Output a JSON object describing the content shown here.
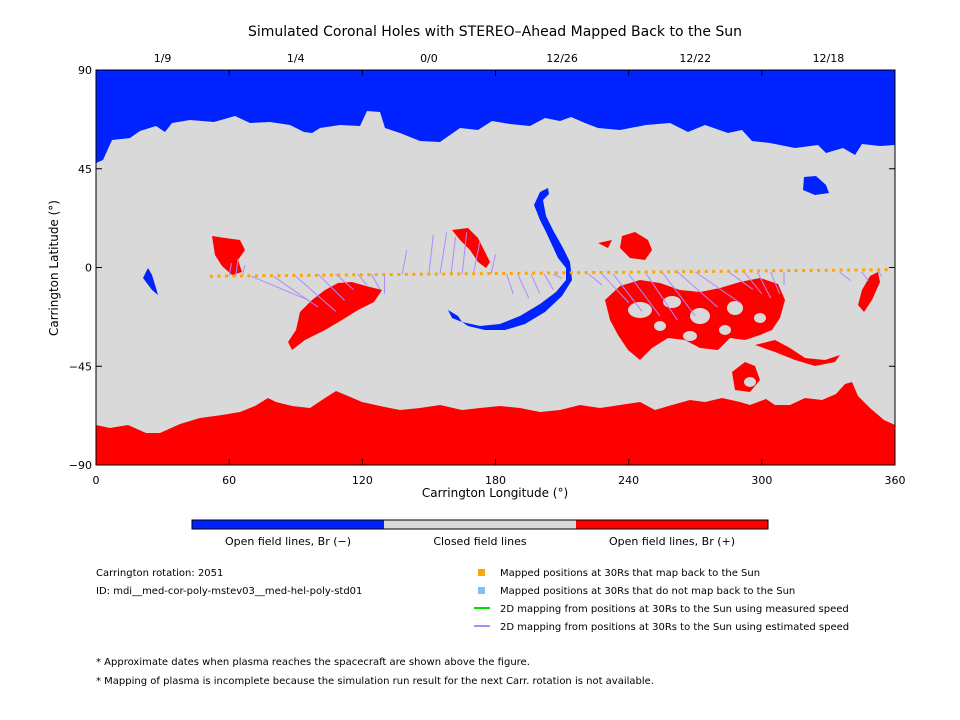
{
  "chart_data": {
    "type": "map",
    "title": "Simulated Coronal Holes with STEREO–Ahead Mapped Back to the Sun",
    "xlabel": "Carrington Longitude (°)",
    "ylabel": "Carrington Latitude (°)",
    "xlim": [
      0,
      360
    ],
    "ylim": [
      -90,
      90
    ],
    "x_ticks": [
      "0",
      "60",
      "120",
      "180",
      "240",
      "300",
      "360"
    ],
    "y_ticks": [
      "90",
      "45",
      "0",
      "−45",
      "−90"
    ],
    "top_date_ticks": [
      {
        "lon": 30,
        "label": "1/9"
      },
      {
        "lon": 90,
        "label": "1/4"
      },
      {
        "lon": 150,
        "label": "0/0"
      },
      {
        "lon": 210,
        "label": "12/26"
      },
      {
        "lon": 270,
        "label": "12/22"
      },
      {
        "lon": 330,
        "label": "12/18"
      }
    ],
    "colors": {
      "open_negative": "#0022ff",
      "closed": "#d9d9d9",
      "open_positive": "#ff0000",
      "mapped": "#ffa500",
      "unmapped": "#7fbfff",
      "measured_speed": "#00dd00",
      "estimated_speed": "#b088ff"
    },
    "mapped_track": {
      "lon_start": 52,
      "lon_end": 356,
      "lat_start": -4,
      "lat_end": -1
    },
    "estimated_speed_links": [
      [
        60,
        -4,
        61,
        2
      ],
      [
        63,
        -4,
        64,
        4
      ],
      [
        66,
        -4,
        67,
        1
      ],
      [
        70,
        -4,
        96,
        -15
      ],
      [
        80,
        -4,
        100,
        -18
      ],
      [
        90,
        -4,
        108,
        -20
      ],
      [
        100,
        -3,
        112,
        -15
      ],
      [
        108,
        -3,
        116,
        -10
      ],
      [
        118,
        -3,
        122,
        -8
      ],
      [
        124,
        -3,
        128,
        -10
      ],
      [
        130,
        -3,
        130,
        -12
      ],
      [
        138,
        -3,
        140,
        8
      ],
      [
        150,
        -3,
        152,
        15
      ],
      [
        155,
        -3,
        158,
        16
      ],
      [
        160,
        -3,
        162,
        14
      ],
      [
        165,
        -3,
        167,
        16
      ],
      [
        170,
        -3,
        173,
        12
      ],
      [
        178,
        -3,
        180,
        6
      ],
      [
        185,
        -3,
        188,
        -12
      ],
      [
        190,
        -3,
        195,
        -14
      ],
      [
        196,
        -3,
        200,
        -12
      ],
      [
        202,
        -3,
        206,
        -10
      ],
      [
        206,
        -3,
        210,
        -5
      ],
      [
        222,
        -3,
        228,
        -8
      ],
      [
        228,
        -3,
        240,
        -16
      ],
      [
        233,
        -3,
        246,
        -20
      ],
      [
        240,
        -3,
        254,
        -22
      ],
      [
        248,
        -3,
        262,
        -24
      ],
      [
        255,
        -2,
        270,
        -22
      ],
      [
        262,
        -2,
        280,
        -18
      ],
      [
        270,
        -2,
        290,
        -16
      ],
      [
        285,
        -2,
        296,
        -10
      ],
      [
        292,
        -2,
        300,
        -12
      ],
      [
        298,
        -2,
        304,
        -14
      ],
      [
        304,
        -2,
        308,
        -12
      ],
      [
        310,
        -2,
        310,
        -8
      ],
      [
        335,
        -2,
        340,
        -6
      ],
      [
        345,
        -2,
        348,
        -6
      ],
      [
        352,
        -1,
        354,
        -4
      ]
    ],
    "legend": [
      {
        "kind": "square",
        "color_key": "mapped",
        "label": "Mapped positions at 30Rs that map back to the Sun"
      },
      {
        "kind": "square",
        "color_key": "unmapped",
        "label": "Mapped positions at 30Rs that do not map back to the Sun"
      },
      {
        "kind": "line",
        "color_key": "measured_speed",
        "label": "2D mapping from positions at 30Rs to the Sun using measured speed"
      },
      {
        "kind": "line",
        "color_key": "estimated_speed",
        "label": "2D mapping from positions at 30Rs to the Sun using estimated speed"
      }
    ]
  },
  "colorbar": {
    "labels": [
      "Open field lines, Br (−)",
      "Closed field lines",
      "Open field lines, Br (+)"
    ]
  },
  "info": {
    "rotation": "Carrington rotation: 2051",
    "id": "ID: mdi__med-cor-poly-mstev03__med-hel-poly-std01"
  },
  "notes": [
    "* Approximate dates when plasma reaches the spacecraft are shown above the figure.",
    "* Mapping of plasma is incomplete because the simulation run result for the next Carr. rotation is not available."
  ]
}
